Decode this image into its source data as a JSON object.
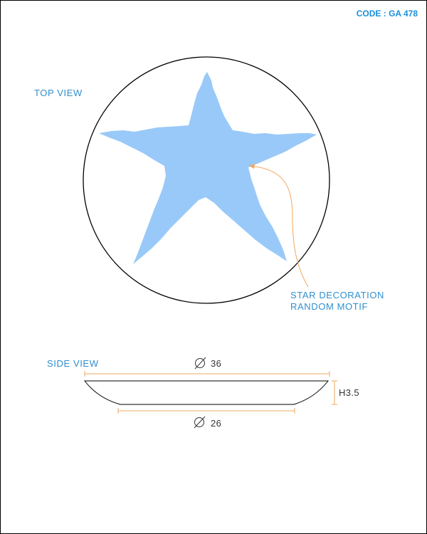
{
  "code_label": "CODE : GA 478",
  "top_view": {
    "title": "TOP VIEW",
    "motif_shape": "star",
    "callout_line1": "STAR DECORATION",
    "callout_line2": "RANDOM MOTIF"
  },
  "side_view": {
    "title": "SIDE VIEW",
    "top_diameter": "36",
    "bottom_diameter": "26",
    "height": "H3.5"
  },
  "colors": {
    "label": "#2f8fd0",
    "code": "#1a8fd8",
    "star_fill": "#99c9f8",
    "dimension_line": "#f0a860",
    "outline": "#000000"
  }
}
